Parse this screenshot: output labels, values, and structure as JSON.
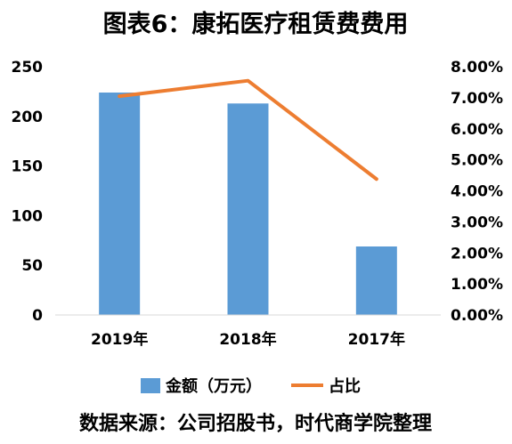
{
  "chart_data": {
    "type": "bar",
    "title": "图表6：康拓医疗租赁费费用",
    "categories": [
      "2019年",
      "2018年",
      "2017年"
    ],
    "series": [
      {
        "name": "金额（万元）",
        "type": "bar",
        "axis": "left",
        "values": [
          224,
          213,
          69
        ],
        "color": "#5B9BD5"
      },
      {
        "name": "占比",
        "type": "line",
        "axis": "right",
        "values": [
          0.0705,
          0.0755,
          0.0438
        ],
        "color": "#ED7D31"
      }
    ],
    "y_left": {
      "min": 0,
      "max": 250,
      "ticks": [
        0,
        50,
        100,
        150,
        200,
        250
      ]
    },
    "y_right": {
      "min": 0,
      "max": 0.08,
      "ticks": [
        0,
        0.01,
        0.02,
        0.03,
        0.04,
        0.05,
        0.06,
        0.07,
        0.08
      ],
      "tick_labels": [
        "0.00%",
        "1.00%",
        "2.00%",
        "3.00%",
        "4.00%",
        "5.00%",
        "6.00%",
        "7.00%",
        "8.00%"
      ]
    },
    "grid": false,
    "legend_position": "bottom"
  },
  "source": "数据来源：公司招股书，时代商学院整理"
}
